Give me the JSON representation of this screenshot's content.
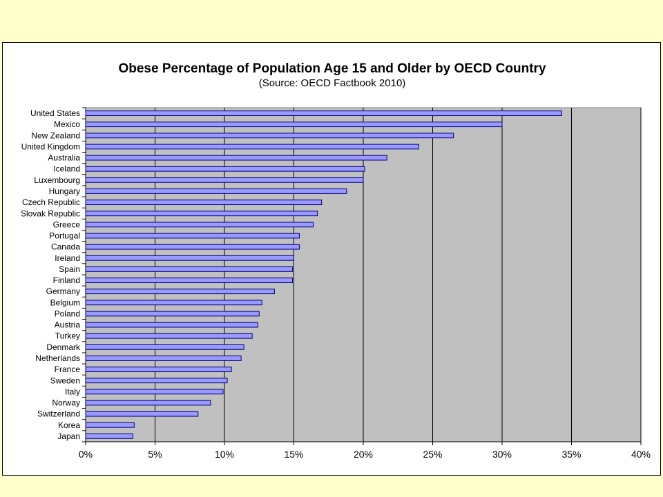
{
  "colors": {
    "page_background": "#FFFFCC",
    "chart_background": "#FFFFFF",
    "plot_background": "#C0C0C0",
    "bar_fill": "#9999FF",
    "bar_stroke": "#000080",
    "gridline": "#000000"
  },
  "chart_data": {
    "type": "bar",
    "orientation": "horizontal",
    "title": "Obese Percentage of Population Age 15 and Older by OECD Country",
    "subtitle": "(Source: OECD Factbook 2010)",
    "xlabel": "",
    "ylabel": "",
    "xlim": [
      0,
      40
    ],
    "grid": "vertical major gridlines",
    "legend": "none",
    "x_ticks": [
      "0%",
      "5%",
      "10%",
      "15%",
      "20%",
      "25%",
      "30%",
      "35%",
      "40%"
    ],
    "x_tick_values": [
      0,
      5,
      10,
      15,
      20,
      25,
      30,
      35,
      40
    ],
    "categories": [
      "United States",
      "Mexico",
      "New Zealand",
      "United Kingdom",
      "Australia",
      "Iceland",
      "Luxembourg",
      "Hungary",
      "Czech Republic",
      "Slovak Republic",
      "Greece",
      "Portugal",
      "Canada",
      "Ireland",
      "Spain",
      "Finland",
      "Germany",
      "Belgium",
      "Poland",
      "Austria",
      "Turkey",
      "Denmark",
      "Netherlands",
      "France",
      "Sweden",
      "Italy",
      "Norway",
      "Switzerland",
      "Korea",
      "Japan"
    ],
    "values": [
      34.3,
      30.0,
      26.5,
      24.0,
      21.7,
      20.1,
      20.0,
      18.8,
      17.0,
      16.7,
      16.4,
      15.4,
      15.4,
      15.0,
      14.9,
      14.9,
      13.6,
      12.7,
      12.5,
      12.4,
      12.0,
      11.4,
      11.2,
      10.5,
      10.2,
      9.9,
      9.0,
      8.1,
      3.5,
      3.4
    ]
  }
}
